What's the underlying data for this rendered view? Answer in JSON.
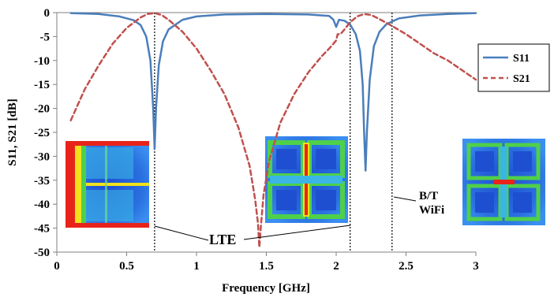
{
  "chart_data": {
    "type": "line",
    "xlabel": "Frequency [GHz]",
    "ylabel": "S11, S21 [dB]",
    "xlim": [
      0,
      3
    ],
    "ylim": [
      -50,
      0
    ],
    "xticks": [
      0,
      0.5,
      1,
      1.5,
      2,
      2.5,
      3
    ],
    "xtick_labels": [
      "0",
      "0.5",
      "1",
      "1.5",
      "2",
      "2.5",
      "3"
    ],
    "yticks": [
      0,
      -5,
      -10,
      -15,
      -20,
      -25,
      -30,
      -35,
      -40,
      -45,
      -50
    ],
    "ytick_labels": [
      "0",
      "-5",
      "-10",
      "-15",
      "-20",
      "-25",
      "-30",
      "-35",
      "-40",
      "-45",
      "-50"
    ],
    "grid": false,
    "legend_position": "right",
    "series": [
      {
        "name": "S11",
        "color": "#4a7ebb",
        "dash": "solid",
        "x": [
          0.1,
          0.3,
          0.45,
          0.55,
          0.6,
          0.64,
          0.67,
          0.69,
          0.7,
          0.71,
          0.73,
          0.76,
          0.8,
          0.9,
          1.0,
          1.2,
          1.5,
          1.8,
          1.95,
          1.98,
          2.0,
          2.02,
          2.06,
          2.1,
          2.14,
          2.17,
          2.19,
          2.2,
          2.21,
          2.22,
          2.24,
          2.27,
          2.31,
          2.36,
          2.45,
          2.6,
          2.8,
          3.0
        ],
        "y": [
          -0.1,
          -0.3,
          -0.8,
          -1.6,
          -2.6,
          -5,
          -10,
          -20,
          -28.5,
          -20,
          -11,
          -6,
          -3.5,
          -1.5,
          -0.8,
          -0.4,
          -0.3,
          -0.4,
          -0.7,
          -1.5,
          -3,
          -1.5,
          -1.7,
          -2.5,
          -4.5,
          -8,
          -15,
          -25,
          -33,
          -25,
          -14,
          -7,
          -4,
          -2.4,
          -1.2,
          -0.6,
          -0.3,
          -0.1
        ]
      },
      {
        "name": "S21",
        "color": "#c0504d",
        "dash": "dashed",
        "x": [
          0.1,
          0.2,
          0.3,
          0.4,
          0.5,
          0.6,
          0.65,
          0.7,
          0.75,
          0.8,
          0.9,
          1.0,
          1.1,
          1.2,
          1.3,
          1.38,
          1.42,
          1.44,
          1.45,
          1.46,
          1.48,
          1.52,
          1.6,
          1.7,
          1.8,
          1.9,
          1.95,
          1.98,
          2.0,
          2.01,
          2.03,
          2.06,
          2.1,
          2.15,
          2.2,
          2.25,
          2.3,
          2.4,
          2.5,
          2.6,
          2.7,
          2.8,
          2.9,
          3.0
        ],
        "y": [
          -22.5,
          -16,
          -11,
          -6.5,
          -3.2,
          -1.0,
          -0.3,
          -0.1,
          -0.5,
          -1.5,
          -4,
          -7.5,
          -12,
          -17,
          -24,
          -32,
          -39,
          -44,
          -49,
          -45,
          -38,
          -31,
          -23,
          -17,
          -12.5,
          -9,
          -7.5,
          -6.5,
          -5.8,
          -4.5,
          -4.5,
          -3.5,
          -2,
          -0.8,
          -0.3,
          -0.5,
          -1.2,
          -2.8,
          -4.5,
          -6.5,
          -8.5,
          -10,
          -12,
          -14
        ]
      }
    ],
    "marker_lines": [
      {
        "name": "marker-line-0.7",
        "x": 0.7
      },
      {
        "name": "marker-line-2.1",
        "x": 2.1
      },
      {
        "name": "marker-line-2.4",
        "x": 2.4
      }
    ],
    "annotations": [
      {
        "name": "lte-label",
        "text": "LTE"
      },
      {
        "name": "bt-label",
        "text": "B/T"
      },
      {
        "name": "wifi-label",
        "text": "WiFi"
      }
    ]
  }
}
